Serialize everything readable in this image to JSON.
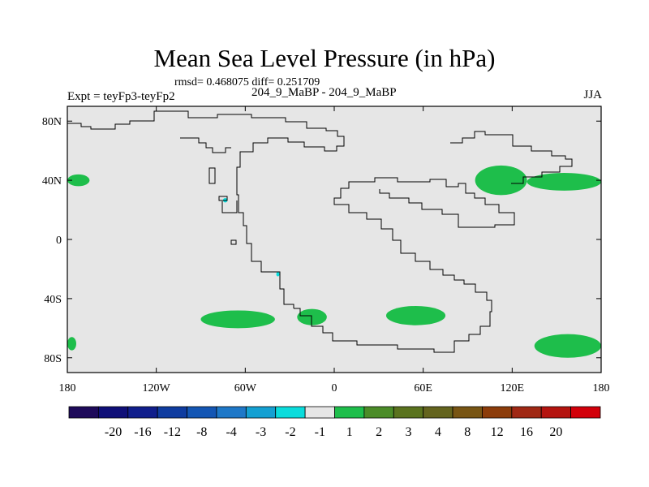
{
  "chart_data": {
    "type": "heatmap",
    "title": "Mean Sea Level Pressure (in hPa)",
    "stats_line": "rmsd= 0.468075 diff= 0.251709",
    "left_label": "Expt = teyFp3-teyFp2",
    "center_label": "204_9_MaBP - 204_9_MaBP",
    "right_label": "JJA",
    "xlim": [
      -180,
      180
    ],
    "ylim": [
      -90,
      90
    ],
    "xticks": [
      {
        "value": -180,
        "label": "180"
      },
      {
        "value": -120,
        "label": "120W"
      },
      {
        "value": -60,
        "label": "60W"
      },
      {
        "value": 0,
        "label": "0"
      },
      {
        "value": 60,
        "label": "60E"
      },
      {
        "value": 120,
        "label": "120E"
      },
      {
        "value": 180,
        "label": "180"
      }
    ],
    "yticks": [
      {
        "value": 80,
        "label": "80N"
      },
      {
        "value": 40,
        "label": "40N"
      },
      {
        "value": 0,
        "label": "0"
      },
      {
        "value": -40,
        "label": "40S"
      },
      {
        "value": -80,
        "label": "80S"
      }
    ],
    "colorbar": {
      "colors": [
        "#1e0a5a",
        "#0f0f78",
        "#101e8c",
        "#0f3ca0",
        "#1456b4",
        "#1e78c8",
        "#14a0d2",
        "#0adcdc",
        "#e6e6e6",
        "#1ebe4b",
        "#4b8c28",
        "#5a731e",
        "#64641e",
        "#785514",
        "#8c3c0a",
        "#a02814",
        "#b4140f",
        "#d2000a"
      ],
      "labels": [
        "-20",
        "-16",
        "-12",
        "-8",
        "-4",
        "-3",
        "-2",
        "-1",
        "1",
        "2",
        "3",
        "4",
        "8",
        "12",
        "16",
        "20"
      ]
    },
    "anomaly_regions": [
      {
        "category": "1 to 2",
        "lon_min": -180,
        "lon_max": -165,
        "lat_min": 36,
        "lat_max": 44
      },
      {
        "category": "1 to 2",
        "lon_min": -90,
        "lon_max": -40,
        "lat_min": -60,
        "lat_max": -48
      },
      {
        "category": "1 to 2",
        "lon_min": -25,
        "lon_max": -5,
        "lat_min": -58,
        "lat_max": -47
      },
      {
        "category": "1 to 2",
        "lon_min": 35,
        "lon_max": 75,
        "lat_min": -58,
        "lat_max": -45
      },
      {
        "category": "1 to 2",
        "lon_min": 95,
        "lon_max": 130,
        "lat_min": 30,
        "lat_max": 50
      },
      {
        "category": "1 to 2",
        "lon_min": 130,
        "lon_max": 180,
        "lat_min": 33,
        "lat_max": 45
      },
      {
        "category": "1 to 2",
        "lon_min": 135,
        "lon_max": 180,
        "lat_min": -80,
        "lat_max": -64
      },
      {
        "category": "1 to 2",
        "lon_min": -180,
        "lon_max": -174,
        "lat_min": -75,
        "lat_max": -66
      },
      {
        "category": "-1 to -2",
        "lon_min": -75,
        "lon_max": -72,
        "lat_min": 25,
        "lat_max": 28
      },
      {
        "category": "-1 to -2",
        "lon_min": -39,
        "lon_max": -37,
        "lat_min": -25,
        "lat_max": -22
      }
    ]
  },
  "colors": {
    "background": "#e6e6e6",
    "positive_1_2": "#1ebe4b",
    "negative_1_2": "#0adcdc",
    "coast": "#000000"
  }
}
